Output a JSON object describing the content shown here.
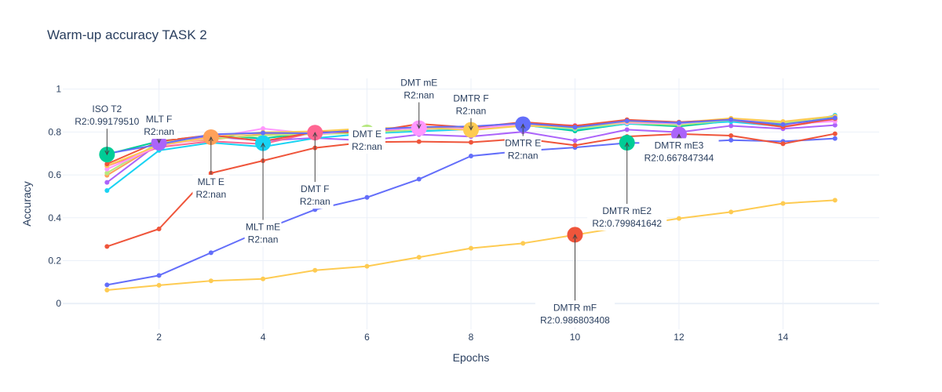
{
  "chart_data": {
    "type": "line",
    "title": "Warm-up accuracy TASK 2",
    "xlabel": "Epochs",
    "ylabel": "Accuracy",
    "xlim": [
      0.15,
      15.85
    ],
    "ylim": [
      -0.12,
      1.05
    ],
    "xticks": [
      2,
      4,
      6,
      8,
      10,
      12,
      14
    ],
    "xtick_labels": [
      "2",
      "4",
      "6",
      "8",
      "10",
      "12",
      "14"
    ],
    "yticks": [
      0,
      0.2,
      0.4,
      0.6,
      0.8,
      1
    ],
    "ytick_labels": [
      "0",
      "0.2",
      "0.4",
      "0.6",
      "0.8",
      "1"
    ],
    "grid": true,
    "legend": "none",
    "x": [
      1,
      2,
      3,
      4,
      5,
      6,
      7,
      8,
      9,
      10,
      11,
      12,
      13,
      14,
      15
    ],
    "series": [
      {
        "color": "#FECB52",
        "values": [
          0.063,
          0.085,
          0.106,
          0.115,
          0.155,
          0.174,
          0.216,
          0.258,
          0.281,
          0.32,
          0.36,
          0.397,
          0.427,
          0.467,
          0.482
        ]
      },
      {
        "color": "#636EFA",
        "values": [
          0.087,
          0.131,
          0.237,
          0.343,
          0.438,
          0.495,
          0.58,
          0.688,
          0.712,
          0.728,
          0.749,
          0.75,
          0.762,
          0.756,
          0.77
        ]
      },
      {
        "color": "#EF553B",
        "values": [
          0.266,
          0.348,
          0.608,
          0.666,
          0.726,
          0.753,
          0.755,
          0.752,
          0.769,
          0.738,
          0.779,
          0.791,
          0.783,
          0.745,
          0.792
        ]
      },
      {
        "color": "#00CC96",
        "values": [
          0.696,
          0.757,
          0.784,
          0.77,
          0.798,
          0.806,
          0.819,
          0.815,
          0.833,
          0.805,
          0.839,
          0.826,
          0.852,
          0.83,
          0.871
        ]
      },
      {
        "color": "#AB63FA",
        "values": [
          0.565,
          0.748,
          0.778,
          0.76,
          0.772,
          0.76,
          0.788,
          0.779,
          0.801,
          0.76,
          0.811,
          0.799,
          0.829,
          0.815,
          0.832
        ]
      },
      {
        "color": "#FFA15A",
        "values": [
          0.598,
          0.745,
          0.764,
          0.792,
          0.795,
          0.812,
          0.824,
          0.822,
          0.836,
          0.821,
          0.847,
          0.838,
          0.853,
          0.847,
          0.861
        ]
      },
      {
        "color": "#19D3F3",
        "values": [
          0.527,
          0.714,
          0.75,
          0.731,
          0.771,
          0.793,
          0.803,
          0.813,
          0.831,
          0.812,
          0.838,
          0.835,
          0.848,
          0.825,
          0.878
        ]
      },
      {
        "color": "#FF6692",
        "values": [
          0.641,
          0.729,
          0.757,
          0.744,
          0.799,
          0.8,
          0.82,
          0.813,
          0.839,
          0.827,
          0.851,
          0.841,
          0.856,
          0.823,
          0.86
        ]
      },
      {
        "color": "#B6E880",
        "values": [
          0.609,
          0.751,
          0.769,
          0.784,
          0.79,
          0.796,
          0.811,
          0.819,
          0.832,
          0.815,
          0.842,
          0.832,
          0.856,
          0.842,
          0.865
        ]
      },
      {
        "color": "#FF97FF",
        "values": [
          0.627,
          0.736,
          0.773,
          0.816,
          0.791,
          0.808,
          0.817,
          0.815,
          0.838,
          0.831,
          0.843,
          0.84,
          0.86,
          0.835,
          0.85
        ]
      },
      {
        "color": "#FECB52",
        "values": [
          0.643,
          0.738,
          0.776,
          0.799,
          0.803,
          0.817,
          0.822,
          0.808,
          0.829,
          0.824,
          0.848,
          0.844,
          0.864,
          0.849,
          0.874
        ]
      },
      {
        "color": "#EF553B",
        "values": [
          0.651,
          0.756,
          0.786,
          0.757,
          0.8,
          0.799,
          0.838,
          0.821,
          0.846,
          0.829,
          0.857,
          0.846,
          0.858,
          0.824,
          0.862
        ]
      },
      {
        "color": "#636EFA",
        "values": [
          0.699,
          0.742,
          0.789,
          0.796,
          0.794,
          0.811,
          0.823,
          0.826,
          0.841,
          0.822,
          0.852,
          0.843,
          0.857,
          0.835,
          0.866
        ]
      }
    ],
    "markers": [
      {
        "x": 1,
        "y": 0.695,
        "color": "#00CC96"
      },
      {
        "x": 2,
        "y": 0.75,
        "color": "#AB63FA"
      },
      {
        "x": 3,
        "y": 0.776,
        "color": "#FFA15A"
      },
      {
        "x": 4,
        "y": 0.748,
        "color": "#19D3F3"
      },
      {
        "x": 5,
        "y": 0.797,
        "color": "#FF6692"
      },
      {
        "x": 6,
        "y": 0.798,
        "color": "#B6E880"
      },
      {
        "x": 7,
        "y": 0.818,
        "color": "#FF97FF"
      },
      {
        "x": 8,
        "y": 0.81,
        "color": "#FECB52"
      },
      {
        "x": 9,
        "y": 0.836,
        "color": "#636EFA"
      },
      {
        "x": 10,
        "y": 0.321,
        "color": "#EF553B"
      },
      {
        "x": 11,
        "y": 0.75,
        "color": "#00CC96"
      },
      {
        "x": 12,
        "y": 0.789,
        "color": "#AB63FA"
      }
    ],
    "annotations": [
      {
        "x": 1,
        "y": 0.695,
        "lines": [
          "ISO T2",
          "R2:0.99179510"
        ],
        "ax": 0,
        "ay": -50
      },
      {
        "x": 2,
        "y": 0.75,
        "lines": [
          "MLT F",
          "R2:nan"
        ],
        "ax": 0,
        "ay": -22
      },
      {
        "x": 3,
        "y": 0.776,
        "lines": [
          "MLT E",
          "R2:nan"
        ],
        "ax": 0,
        "ay": 65
      },
      {
        "x": 4,
        "y": 0.748,
        "lines": [
          "MLT mE",
          "R2:nan"
        ],
        "ax": 0,
        "ay": 115
      },
      {
        "x": 5,
        "y": 0.797,
        "lines": [
          "DMT F",
          "R2:nan"
        ],
        "ax": 0,
        "ay": 80
      },
      {
        "x": 6,
        "y": 0.798,
        "lines": [
          "DMT E",
          "R2:nan"
        ],
        "ax": 0,
        "ay": 10
      },
      {
        "x": 7,
        "y": 0.818,
        "lines": [
          "DMT mE",
          "R2:nan"
        ],
        "ax": 0,
        "ay": -50
      },
      {
        "x": 8,
        "y": 0.81,
        "lines": [
          "DMTR F",
          "R2:nan"
        ],
        "ax": 0,
        "ay": -32
      },
      {
        "x": 9,
        "y": 0.836,
        "lines": [
          "DMTR E",
          "R2:nan"
        ],
        "ax": 0,
        "ay": 32
      },
      {
        "x": 10,
        "y": 0.321,
        "lines": [
          "DMTR mF",
          "R2:0.986803408"
        ],
        "ax": 0,
        "ay": 101
      },
      {
        "x": 11,
        "y": 0.75,
        "lines": [
          "DMTR mE2",
          "R2:0.799841642"
        ],
        "ax": 0,
        "ay": 95
      },
      {
        "x": 12,
        "y": 0.789,
        "lines": [
          "DMTR mE3",
          "R2:0.667847344"
        ],
        "ax": 0,
        "ay": 22
      }
    ]
  }
}
